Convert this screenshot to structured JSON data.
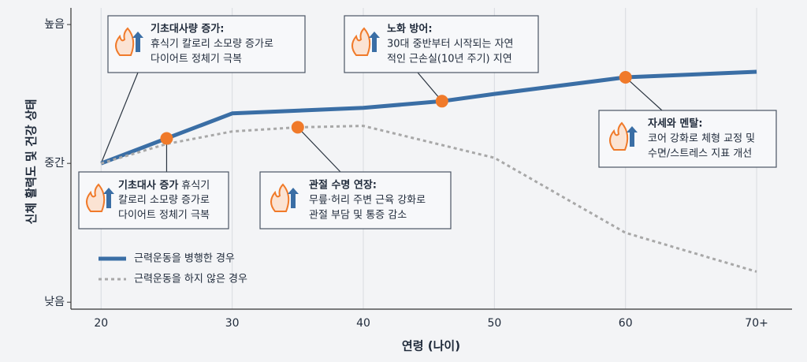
{
  "chart_data": {
    "type": "line",
    "ylabel": "신체 활력도 및 건강 상태",
    "xlabel": "연령 (나이)",
    "xlim": [
      17.7,
      72.7
    ],
    "ylim": [
      -2.5,
      106
    ],
    "xticks": [
      20,
      30,
      40,
      50,
      60,
      {
        "value": 70,
        "label": "70+"
      }
    ],
    "yticks": [
      {
        "value": 0,
        "label": "낮음"
      },
      {
        "value": 50,
        "label": "중간"
      },
      {
        "value": 100,
        "label": "높음"
      }
    ],
    "grid": "x",
    "legend": "lower left",
    "series": [
      {
        "name": "근력운동을 병행한 경우",
        "color": "#3a6ea5",
        "style": "solid",
        "x": [
          20,
          25,
          30,
          40,
          46,
          50,
          60,
          70
        ],
        "values": [
          50,
          59,
          68,
          70,
          72.4,
          75,
          81,
          83
        ]
      },
      {
        "name": "근력운동을 하지 않은 경우",
        "color": "#a8a8a8",
        "style": "dashed",
        "x": [
          20,
          25,
          30,
          35,
          40,
          50,
          60,
          70
        ],
        "values": [
          50,
          57,
          61.5,
          63,
          63.5,
          52,
          25,
          11
        ]
      }
    ],
    "marker_color": "#f07a2a",
    "annotations": [
      {
        "title": "기초대사량 증가:",
        "lines": [
          "휴식기 칼로리 소모량 증가로",
          "다이어트 정체기 극복"
        ]
      },
      {
        "title": "노화 방어:",
        "lines": [
          "30대 중반부터 시작되는 자연",
          "적인 근손실(10년 주기) 지연"
        ],
        "x": 46,
        "y": 72.4
      },
      {
        "title": "기초대사 증가",
        "lines": [
          "휴식기",
          "칼로리 소모량 증가로",
          "다이어트 정체기 극복"
        ],
        "x": 25,
        "y": 59
      },
      {
        "title": "관절 수명 연장:",
        "lines": [
          "무릎·허리 주변 근육 강화로",
          "관절 부담 및 통증 감소"
        ],
        "x": 35,
        "y": 63
      },
      {
        "title": "자세와 멘탈:",
        "lines": [
          "코어 강화로 체형 교정 및",
          "수면/스트레스 지표 개선"
        ],
        "x": 60,
        "y": 81
      }
    ]
  }
}
